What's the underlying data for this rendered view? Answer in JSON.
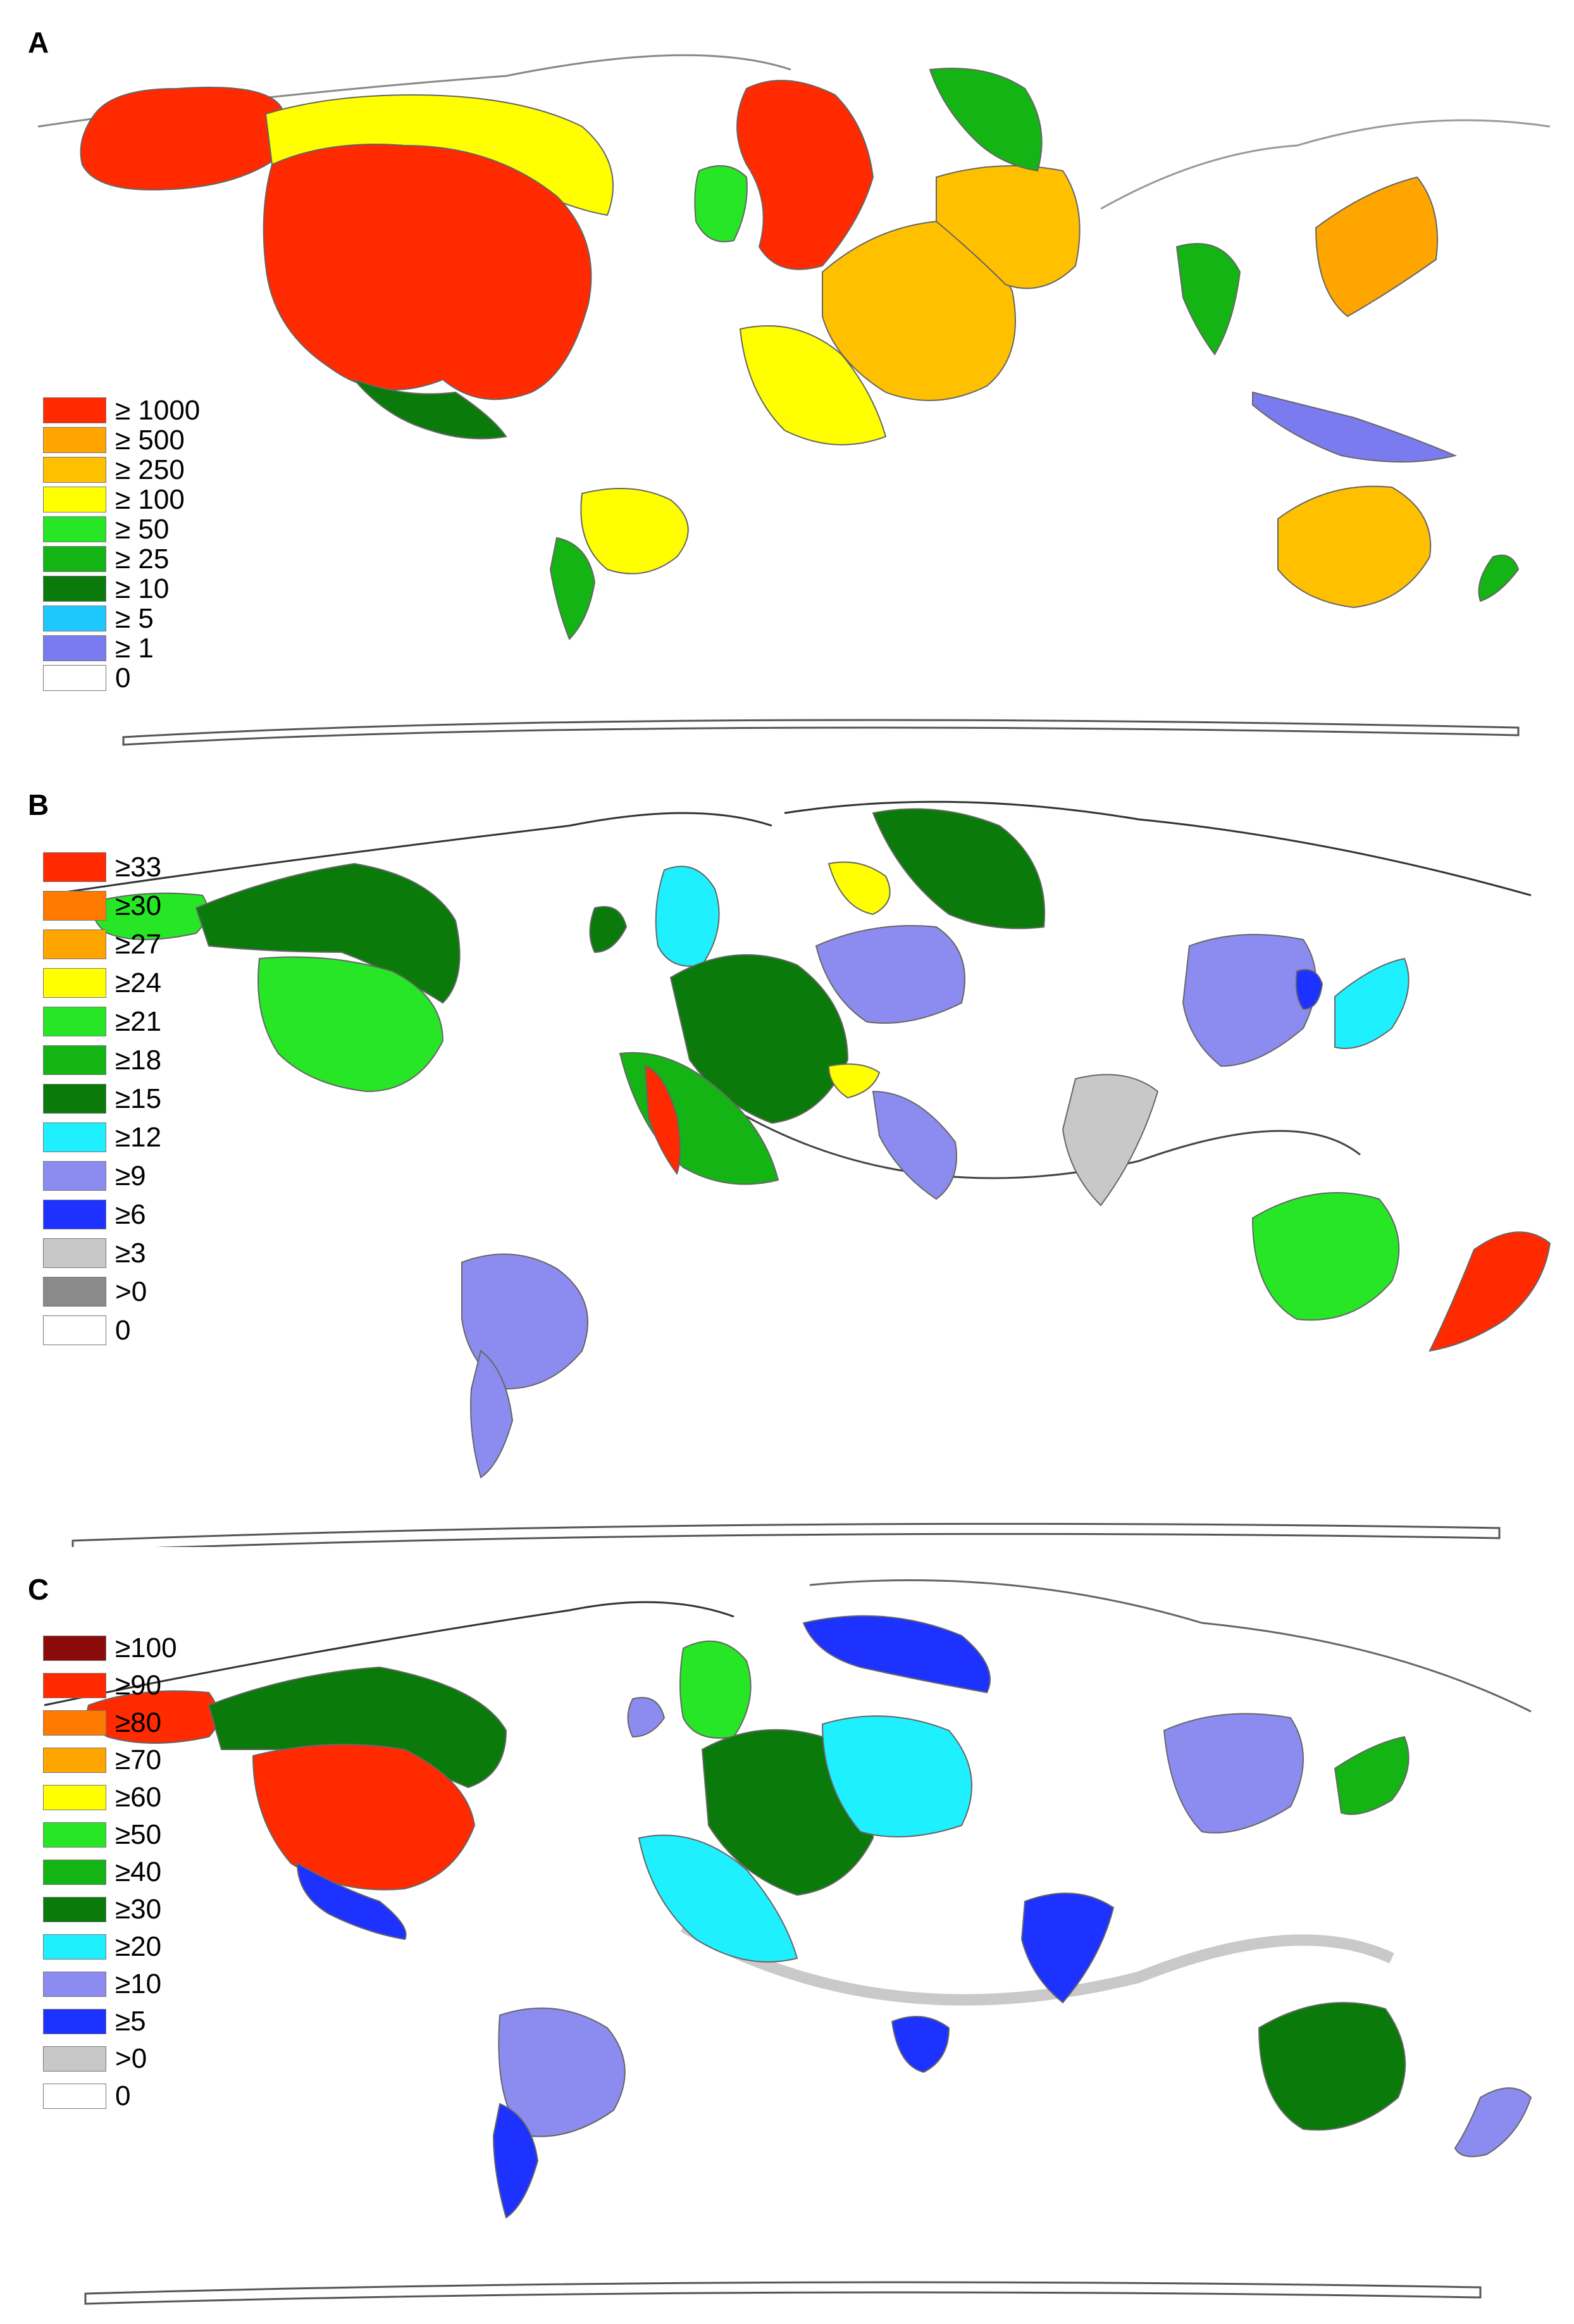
{
  "panels": [
    {
      "label": "A",
      "legend": [
        {
          "label": "≥ 1000",
          "color": "#ff2a00"
        },
        {
          "label": "≥ 500",
          "color": "#ffa500"
        },
        {
          "label": "≥ 250",
          "color": "#ffc000"
        },
        {
          "label": "≥ 100",
          "color": "#ffff00"
        },
        {
          "label": "≥ 50",
          "color": "#26e626"
        },
        {
          "label": "≥ 25",
          "color": "#13b413"
        },
        {
          "label": "≥ 10",
          "color": "#0a7a0a"
        },
        {
          "label": "≥ 5",
          "color": "#1ec8ff"
        },
        {
          "label": "≥ 1",
          "color": "#7b7bf0"
        },
        {
          "label": "0",
          "color": "#ffffff"
        }
      ],
      "regions": [
        {
          "name": "alaska",
          "color": "#ff2a00"
        },
        {
          "name": "usa",
          "color": "#ff2a00"
        },
        {
          "name": "canada",
          "color": "#ffff00"
        },
        {
          "name": "mexico",
          "color": "#0a7a0a"
        },
        {
          "name": "brazil",
          "color": "#ffff00"
        },
        {
          "name": "argentina",
          "color": "#13b413"
        },
        {
          "name": "uk",
          "color": "#ff2a00"
        },
        {
          "name": "ireland",
          "color": "#26e626"
        },
        {
          "name": "france",
          "color": "#ffc000"
        },
        {
          "name": "germany",
          "color": "#ffc000"
        },
        {
          "name": "spain",
          "color": "#ffff00"
        },
        {
          "name": "scandinavia",
          "color": "#13b413"
        },
        {
          "name": "india",
          "color": "#13b413"
        },
        {
          "name": "japan",
          "color": "#ffa500"
        },
        {
          "name": "australia",
          "color": "#ffc000"
        },
        {
          "name": "new-zealand",
          "color": "#13b413"
        },
        {
          "name": "southeast-asia",
          "color": "#7b7bf0"
        }
      ]
    },
    {
      "label": "B",
      "legend": [
        {
          "label": "≥33",
          "color": "#ff2a00"
        },
        {
          "label": "≥30",
          "color": "#ff7a00"
        },
        {
          "label": "≥27",
          "color": "#ffa500"
        },
        {
          "label": "≥24",
          "color": "#ffff00"
        },
        {
          "label": "≥21",
          "color": "#26e626"
        },
        {
          "label": "≥18",
          "color": "#13b413"
        },
        {
          "label": "≥15",
          "color": "#0a7a0a"
        },
        {
          "label": "≥12",
          "color": "#1ef0ff"
        },
        {
          "label": "≥9",
          "color": "#8c8cf0"
        },
        {
          "label": "≥6",
          "color": "#1e32ff"
        },
        {
          "label": "≥3",
          "color": "#c8c8c8"
        },
        {
          "label": ">0",
          "color": "#8a8a8a"
        },
        {
          "label": "0",
          "color": "#ffffff"
        }
      ],
      "regions": [
        {
          "name": "alaska",
          "color": "#26e626"
        },
        {
          "name": "canada",
          "color": "#0a7a0a"
        },
        {
          "name": "usa",
          "color": "#26e626"
        },
        {
          "name": "brazil",
          "color": "#8c8cf0"
        },
        {
          "name": "argentina",
          "color": "#8c8cf0"
        },
        {
          "name": "uk",
          "color": "#1ef0ff"
        },
        {
          "name": "ireland",
          "color": "#0a7a0a"
        },
        {
          "name": "france",
          "color": "#0a7a0a"
        },
        {
          "name": "spain",
          "color": "#13b413"
        },
        {
          "name": "portugal",
          "color": "#ff2a00"
        },
        {
          "name": "germany",
          "color": "#8c8cf0"
        },
        {
          "name": "switzerland",
          "color": "#ffff00"
        },
        {
          "name": "italy",
          "color": "#8c8cf0"
        },
        {
          "name": "scandinavia",
          "color": "#0a7a0a"
        },
        {
          "name": "denmark",
          "color": "#ffff00"
        },
        {
          "name": "china",
          "color": "#8c8cf0"
        },
        {
          "name": "japan",
          "color": "#1ef0ff"
        },
        {
          "name": "korea",
          "color": "#1e32ff"
        },
        {
          "name": "india",
          "color": "#c8c8c8"
        },
        {
          "name": "australia",
          "color": "#26e626"
        },
        {
          "name": "new-zealand",
          "color": "#ff2a00"
        }
      ]
    },
    {
      "label": "C",
      "legend": [
        {
          "label": "≥100",
          "color": "#8b0a0a"
        },
        {
          "label": "≥90",
          "color": "#ff2a00"
        },
        {
          "label": "≥80",
          "color": "#ff7a00"
        },
        {
          "label": "≥70",
          "color": "#ffa500"
        },
        {
          "label": "≥60",
          "color": "#ffff00"
        },
        {
          "label": "≥50",
          "color": "#26e626"
        },
        {
          "label": "≥40",
          "color": "#13b413"
        },
        {
          "label": "≥30",
          "color": "#0a7a0a"
        },
        {
          "label": "≥20",
          "color": "#1ef0ff"
        },
        {
          "label": "≥10",
          "color": "#8c8cf0"
        },
        {
          "label": "≥5",
          "color": "#1e32ff"
        },
        {
          "label": ">0",
          "color": "#c8c8c8"
        },
        {
          "label": "0",
          "color": "#ffffff"
        }
      ],
      "regions": [
        {
          "name": "alaska",
          "color": "#ff2a00"
        },
        {
          "name": "canada",
          "color": "#0a7a0a"
        },
        {
          "name": "usa",
          "color": "#ff2a00"
        },
        {
          "name": "mexico",
          "color": "#1e32ff"
        },
        {
          "name": "brazil",
          "color": "#8c8cf0"
        },
        {
          "name": "argentina",
          "color": "#1e32ff"
        },
        {
          "name": "uk",
          "color": "#26e626"
        },
        {
          "name": "ireland",
          "color": "#8c8cf0"
        },
        {
          "name": "france",
          "color": "#0a7a0a"
        },
        {
          "name": "spain",
          "color": "#1ef0ff"
        },
        {
          "name": "germany",
          "color": "#1ef0ff"
        },
        {
          "name": "scandinavia",
          "color": "#1e32ff"
        },
        {
          "name": "india",
          "color": "#1e32ff"
        },
        {
          "name": "china",
          "color": "#8c8cf0"
        },
        {
          "name": "japan",
          "color": "#13b413"
        },
        {
          "name": "australia",
          "color": "#0a7a0a"
        },
        {
          "name": "new-zealand",
          "color": "#8c8cf0"
        },
        {
          "name": "south-africa",
          "color": "#1e32ff"
        }
      ]
    }
  ]
}
